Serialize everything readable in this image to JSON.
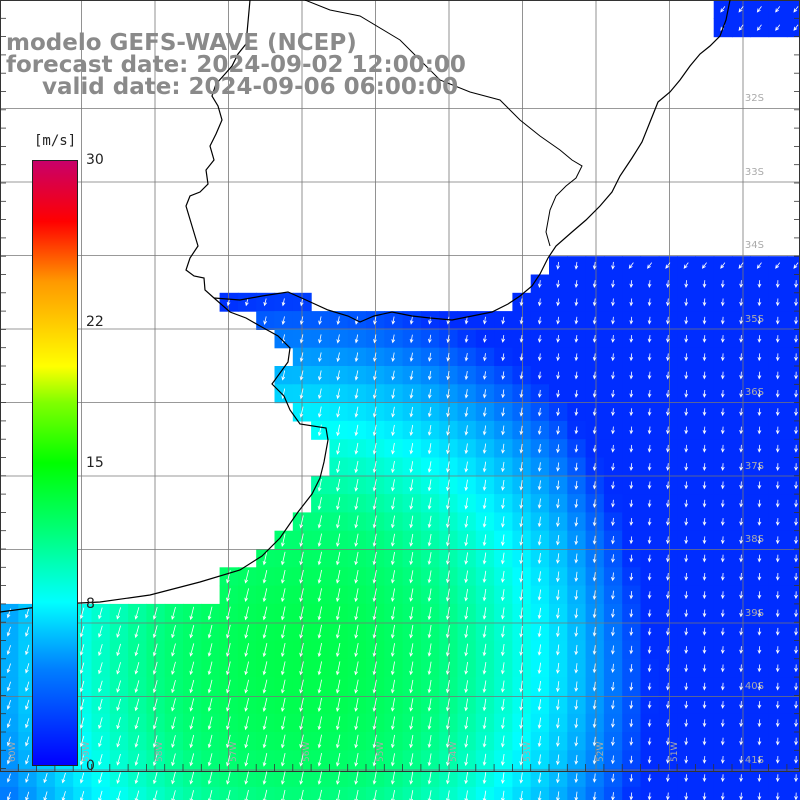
{
  "title": {
    "line1": "modelo GEFS-WAVE (NCEP)",
    "line2": "forecast date: 2024-09-02 12:00:00",
    "line3": "valid date: 2024-09-06 06:00:00"
  },
  "colorbar": {
    "units": "[m/s]",
    "ticks": [
      "30",
      "22",
      "15",
      "8",
      "0"
    ],
    "tick_values": [
      30,
      22,
      15,
      8,
      0
    ]
  },
  "map": {
    "variable": "wind speed",
    "lat_labels": [
      "32S",
      "33S",
      "34S",
      "35S",
      "36S",
      "37S",
      "38S",
      "39S",
      "40S",
      "41S"
    ],
    "lon_labels": [
      "60W",
      "59W",
      "58W",
      "57W",
      "56W",
      "55W",
      "54W",
      "53W",
      "52W",
      "51W"
    ],
    "colors": {
      "land": "#ffffff",
      "coastline": "#000000",
      "gridline": "#777777",
      "arrows": "#ffffff",
      "title_text": "#8a8a8a",
      "axis_labels": "#aaaaaa"
    }
  }
}
